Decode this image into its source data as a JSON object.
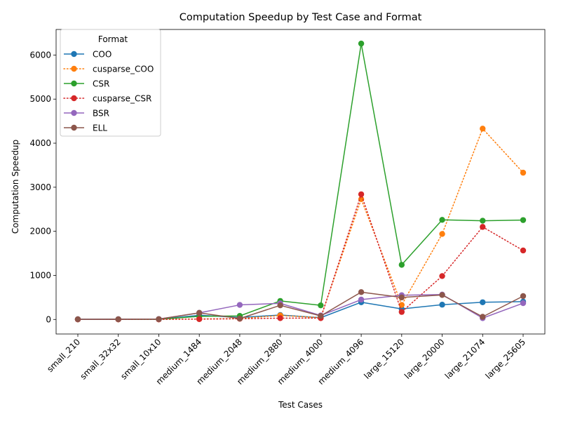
{
  "chart_data": {
    "type": "line",
    "title": "Computation Speedup by Test Case and Format",
    "xlabel": "Test Cases",
    "ylabel": "Computation Speedup",
    "categories": [
      "small_210",
      "small_32x32",
      "small_10x10",
      "medium_1484",
      "medium_2048",
      "medium_2880",
      "medium_4000",
      "medium_4096",
      "large_15120",
      "large_20000",
      "large_21074",
      "large_25605"
    ],
    "ylim": [
      -330,
      6580
    ],
    "yticks": [
      0,
      1000,
      2000,
      3000,
      4000,
      5000,
      6000
    ],
    "grid": false,
    "legend": {
      "title": "Format",
      "position": "top-left"
    },
    "series": [
      {
        "name": "COO",
        "color": "#1f77b4",
        "style": "solid",
        "values": [
          2,
          3,
          4,
          95,
          45,
          100,
          40,
          390,
          240,
          335,
          390,
          405
        ]
      },
      {
        "name": "cusparse_COO",
        "color": "#ff7f0e",
        "style": "dotted",
        "values": [
          1,
          1,
          2,
          10,
          20,
          90,
          40,
          2730,
          330,
          1940,
          4330,
          3330
        ]
      },
      {
        "name": "CSR",
        "color": "#2ca02c",
        "style": "solid",
        "values": [
          3,
          4,
          5,
          70,
          80,
          420,
          320,
          6260,
          1240,
          2260,
          2240,
          2255
        ]
      },
      {
        "name": "cusparse_CSR",
        "color": "#d62728",
        "style": "dotted",
        "values": [
          1,
          1,
          2,
          8,
          15,
          30,
          30,
          2840,
          170,
          985,
          2100,
          1565
        ]
      },
      {
        "name": "BSR",
        "color": "#9467bd",
        "style": "solid",
        "values": [
          5,
          6,
          8,
          150,
          330,
          365,
          90,
          450,
          550,
          565,
          30,
          370
        ]
      },
      {
        "name": "ELL",
        "color": "#8c564b",
        "style": "solid",
        "values": [
          5,
          6,
          8,
          150,
          20,
          320,
          80,
          620,
          500,
          555,
          60,
          530
        ]
      }
    ]
  }
}
